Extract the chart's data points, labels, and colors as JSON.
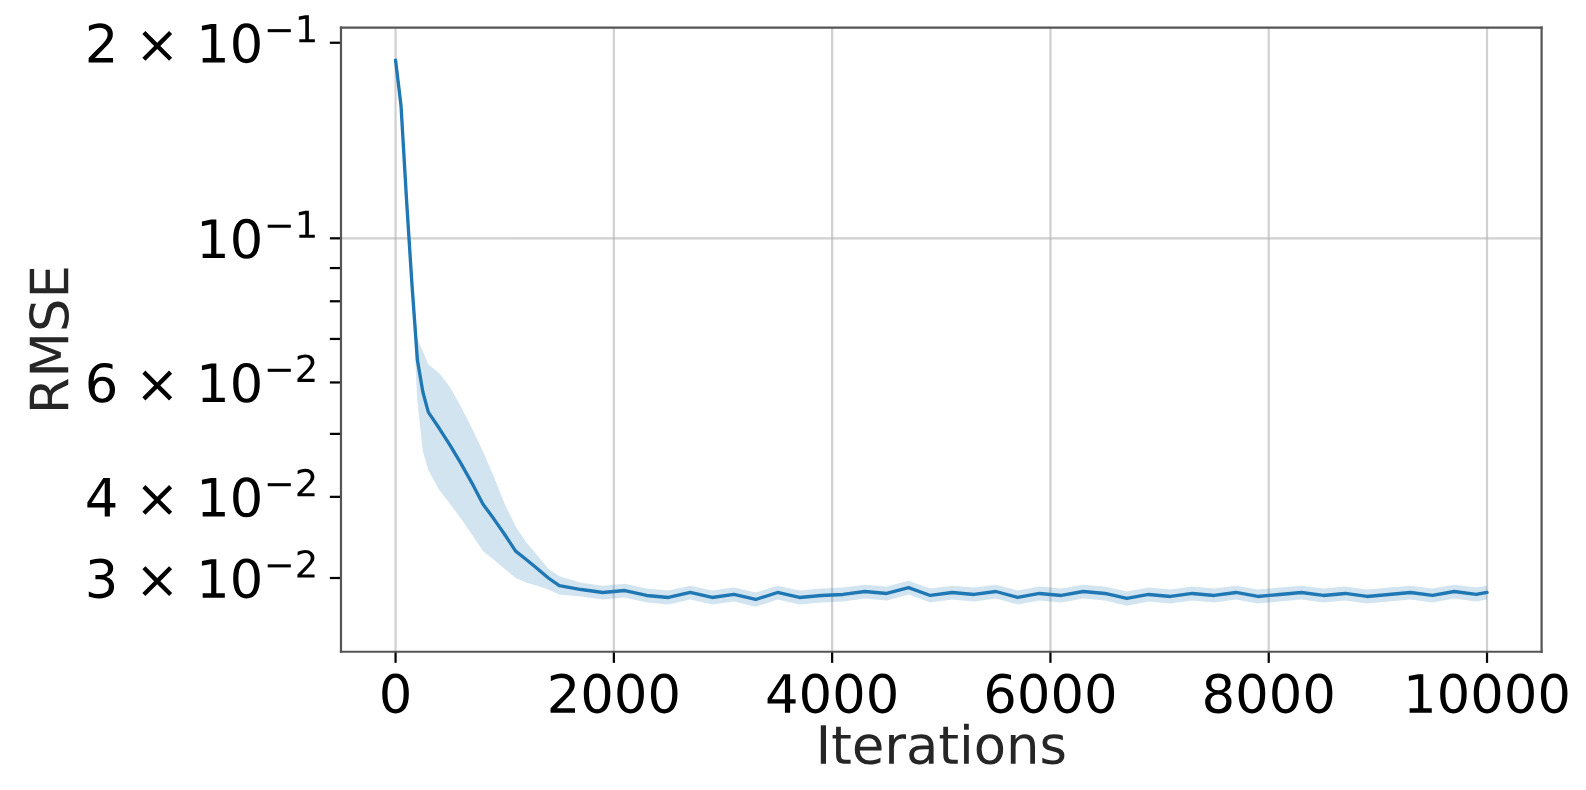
{
  "chart_data": {
    "type": "line",
    "xlabel": "Iterations",
    "ylabel": "RMSE",
    "log": "y",
    "grid": true,
    "xlim": [
      -500,
      10500
    ],
    "xticks": [
      0,
      2000,
      4000,
      6000,
      8000,
      10000
    ],
    "ylim": [
      0.0231,
      0.211
    ],
    "yticks": [
      {
        "value": 0.03,
        "label": "3 × 10$^{−2}$"
      },
      {
        "value": 0.04,
        "label": "4 × 10$^{−2}$"
      },
      {
        "value": 0.05,
        "label": null
      },
      {
        "value": 0.06,
        "label": "6 × 10$^{−2}$"
      },
      {
        "value": 0.07,
        "label": null
      },
      {
        "value": 0.08,
        "label": null
      },
      {
        "value": 0.09,
        "label": null
      },
      {
        "value": 0.1,
        "label": "10$^{−1}$"
      },
      {
        "value": 0.2,
        "label": "2 × 10$^{−1}$"
      }
    ],
    "x": [
      0,
      50,
      100,
      150,
      200,
      250,
      300,
      400,
      500,
      600,
      700,
      800,
      900,
      1000,
      1100,
      1200,
      1300,
      1400,
      1500,
      1700,
      1900,
      2100,
      2300,
      2500,
      2700,
      2900,
      3100,
      3300,
      3500,
      3700,
      3900,
      4100,
      4300,
      4500,
      4700,
      4900,
      5100,
      5300,
      5500,
      5700,
      5900,
      6100,
      6300,
      6500,
      6700,
      6900,
      7100,
      7300,
      7500,
      7700,
      7900,
      8100,
      8300,
      8500,
      8700,
      8900,
      9100,
      9300,
      9500,
      9700,
      9900,
      10000
    ],
    "series": [
      {
        "color": "#1f77b4",
        "values": [
          0.188,
          0.16,
          0.115,
          0.085,
          0.065,
          0.058,
          0.054,
          0.051,
          0.048,
          0.045,
          0.042,
          0.039,
          0.037,
          0.035,
          0.033,
          0.032,
          0.031,
          0.03,
          0.0292,
          0.0288,
          0.0285,
          0.0287,
          0.0282,
          0.028,
          0.0285,
          0.028,
          0.0283,
          0.0278,
          0.0285,
          0.028,
          0.0282,
          0.0283,
          0.0286,
          0.0284,
          0.029,
          0.0282,
          0.0285,
          0.0283,
          0.0286,
          0.028,
          0.0284,
          0.0282,
          0.0286,
          0.0284,
          0.0279,
          0.0283,
          0.0281,
          0.0284,
          0.0282,
          0.0285,
          0.0281,
          0.0283,
          0.0285,
          0.0282,
          0.0284,
          0.0281,
          0.0283,
          0.0285,
          0.0282,
          0.0286,
          0.0283,
          0.0285
        ],
        "lower": [
          0.186,
          0.157,
          0.112,
          0.082,
          0.056,
          0.047,
          0.044,
          0.041,
          0.039,
          0.037,
          0.035,
          0.033,
          0.032,
          0.031,
          0.03,
          0.0295,
          0.0292,
          0.0288,
          0.0283,
          0.0281,
          0.0278,
          0.028,
          0.0275,
          0.0273,
          0.0278,
          0.0273,
          0.0276,
          0.0271,
          0.0278,
          0.0273,
          0.0275,
          0.0276,
          0.0279,
          0.0277,
          0.0283,
          0.0275,
          0.0278,
          0.0276,
          0.0279,
          0.0273,
          0.0277,
          0.0275,
          0.0279,
          0.0277,
          0.0272,
          0.0276,
          0.0274,
          0.0277,
          0.0275,
          0.0278,
          0.0274,
          0.0276,
          0.0278,
          0.0275,
          0.0277,
          0.0274,
          0.0276,
          0.0278,
          0.0275,
          0.0279,
          0.0276,
          0.0278
        ],
        "upper": [
          0.19,
          0.163,
          0.118,
          0.089,
          0.07,
          0.067,
          0.064,
          0.062,
          0.059,
          0.055,
          0.051,
          0.047,
          0.043,
          0.039,
          0.036,
          0.034,
          0.0325,
          0.031,
          0.0302,
          0.0295,
          0.0292,
          0.0294,
          0.0289,
          0.0287,
          0.0292,
          0.0287,
          0.029,
          0.0285,
          0.0292,
          0.0287,
          0.0289,
          0.029,
          0.0293,
          0.0291,
          0.0297,
          0.0289,
          0.0292,
          0.029,
          0.0293,
          0.0287,
          0.0291,
          0.0289,
          0.0293,
          0.0291,
          0.0286,
          0.029,
          0.0288,
          0.0291,
          0.0289,
          0.0292,
          0.0288,
          0.029,
          0.0292,
          0.0289,
          0.0291,
          0.0288,
          0.029,
          0.0292,
          0.0289,
          0.0293,
          0.029,
          0.0292
        ]
      }
    ]
  }
}
